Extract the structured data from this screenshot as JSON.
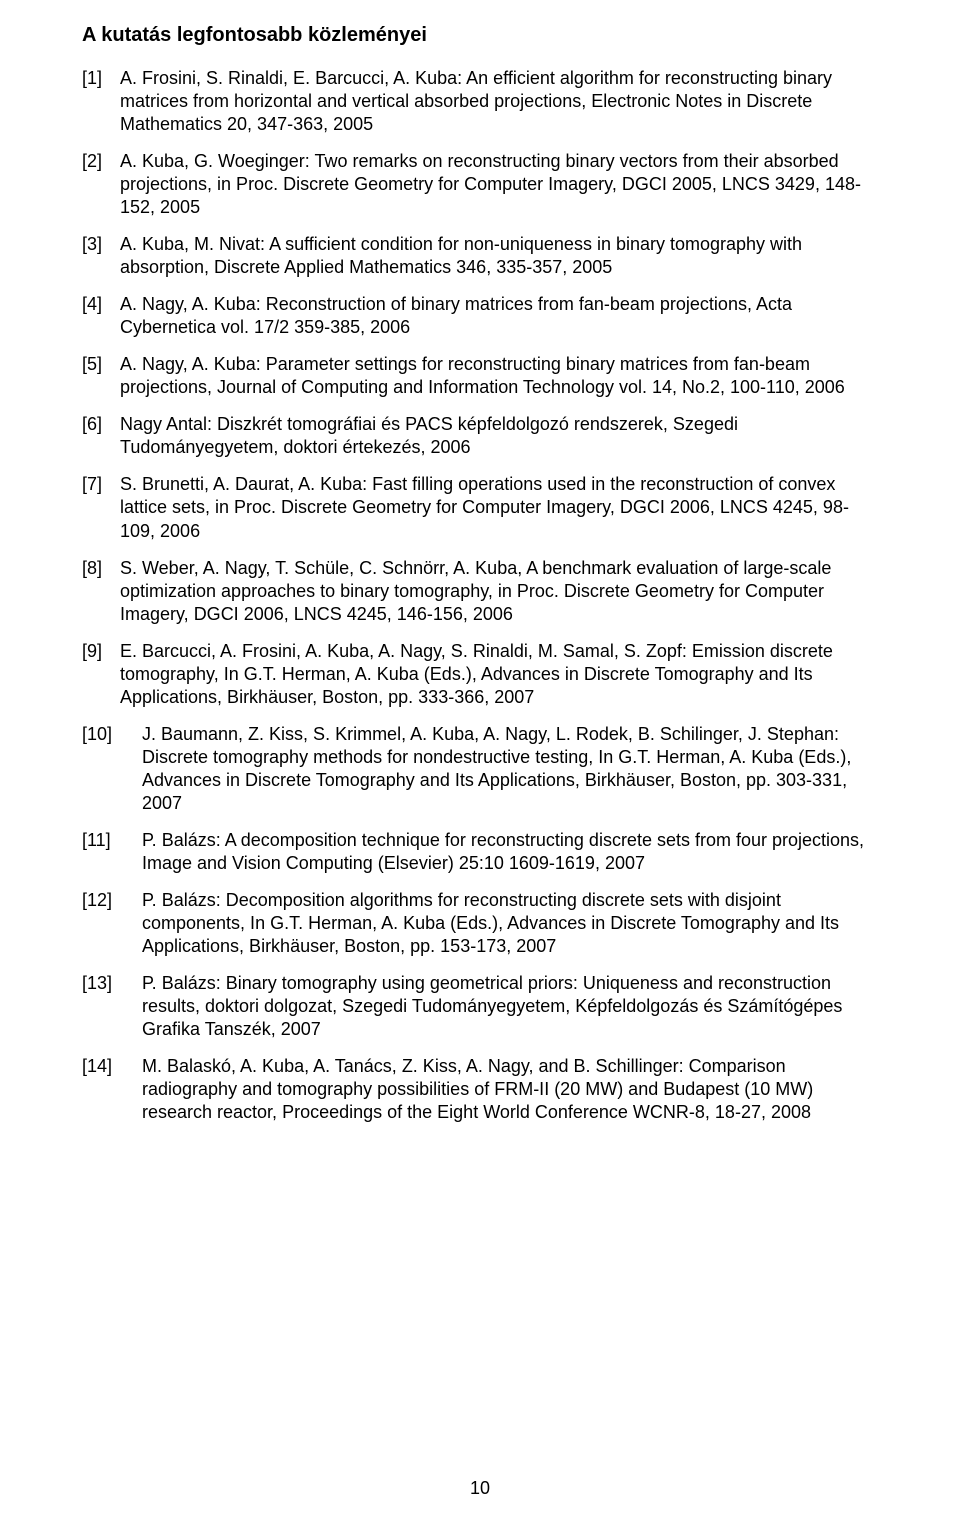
{
  "title": "A kutatás legfontosabb közleményei",
  "page_number": "10",
  "references": [
    {
      "num": "[1]",
      "wide": false,
      "text": "A. Frosini, S. Rinaldi, E. Barcucci, A. Kuba: An efficient algorithm for reconstructing binary matrices from horizontal and vertical absorbed projections, Electronic Notes in Discrete Mathematics 20, 347-363, 2005"
    },
    {
      "num": "[2]",
      "wide": false,
      "text": "A. Kuba, G. Woeginger: Two remarks on reconstructing binary vectors from their absorbed projections, in Proc. Discrete Geometry for Computer Imagery, DGCI 2005, LNCS 3429, 148-152, 2005"
    },
    {
      "num": "[3]",
      "wide": false,
      "text": "A. Kuba, M. Nivat: A sufficient condition for non-uniqueness in binary tomography with absorption, Discrete Applied Mathematics 346, 335-357, 2005"
    },
    {
      "num": "[4]",
      "wide": false,
      "text": "A. Nagy, A. Kuba: Reconstruction of binary matrices from fan-beam projections, Acta Cybernetica vol. 17/2 359-385, 2006"
    },
    {
      "num": "[5]",
      "wide": false,
      "text": "A. Nagy, A. Kuba: Parameter settings for reconstructing binary matrices from fan-beam projections, Journal of Computing and Information Technology vol. 14, No.2, 100-110, 2006"
    },
    {
      "num": "[6]",
      "wide": false,
      "text": "Nagy Antal: Diszkrét tomográfiai és PACS képfeldolgozó rendszerek, Szegedi Tudományegyetem, doktori értekezés, 2006"
    },
    {
      "num": "[7]",
      "wide": false,
      "text": "S. Brunetti, A. Daurat, A. Kuba: Fast filling operations used in the reconstruction of convex lattice sets, in Proc. Discrete Geometry for Computer Imagery, DGCI 2006, LNCS 4245, 98-109, 2006"
    },
    {
      "num": "[8]",
      "wide": false,
      "text": "S. Weber, A. Nagy, T. Schüle, C. Schnörr, A. Kuba, A benchmark evaluation of large-scale optimization approaches to binary tomography, in Proc. Discrete Geometry for Computer Imagery, DGCI 2006, LNCS 4245, 146-156, 2006"
    },
    {
      "num": "[9]",
      "wide": false,
      "text": "E. Barcucci, A. Frosini, A. Kuba, A. Nagy, S. Rinaldi, M. Samal, S. Zopf: Emission discrete tomography, In G.T. Herman, A. Kuba (Eds.), Advances in Discrete Tomography and Its Applications, Birkhäuser, Boston, pp. 333-366, 2007"
    },
    {
      "num": "[10]",
      "wide": true,
      "text": "J. Baumann, Z. Kiss, S. Krimmel, A. Kuba, A. Nagy, L. Rodek, B. Schilinger, J. Stephan: Discrete tomography methods for nondestructive testing, In G.T. Herman, A. Kuba (Eds.), Advances in Discrete Tomography and Its Applications, Birkhäuser, Boston, pp. 303-331, 2007"
    },
    {
      "num": "[11]",
      "wide": true,
      "text": "P. Balázs: A decomposition technique for reconstructing discrete sets from four projections, Image and Vision Computing (Elsevier) 25:10 1609-1619, 2007"
    },
    {
      "num": "[12]",
      "wide": true,
      "text": "P. Balázs: Decomposition algorithms for reconstructing discrete sets with disjoint components, In G.T. Herman, A. Kuba (Eds.), Advances in Discrete Tomography and Its Applications, Birkhäuser, Boston, pp. 153-173, 2007"
    },
    {
      "num": "[13]",
      "wide": true,
      "text": "P. Balázs: Binary tomography using geometrical priors: Uniqueness and reconstruction results, doktori dolgozat, Szegedi Tudományegyetem, Képfeldolgozás és Számítógépes Grafika Tanszék, 2007"
    },
    {
      "num": "[14]",
      "wide": true,
      "text": "M. Balaskó, A. Kuba, A. Tanács, Z. Kiss, A. Nagy, and B. Schillinger: Comparison radiography and tomography possibilities of FRM-II (20 MW) and Budapest (10 MW) research reactor, Proceedings of the Eight World Conference WCNR-8, 18-27, 2008"
    }
  ]
}
